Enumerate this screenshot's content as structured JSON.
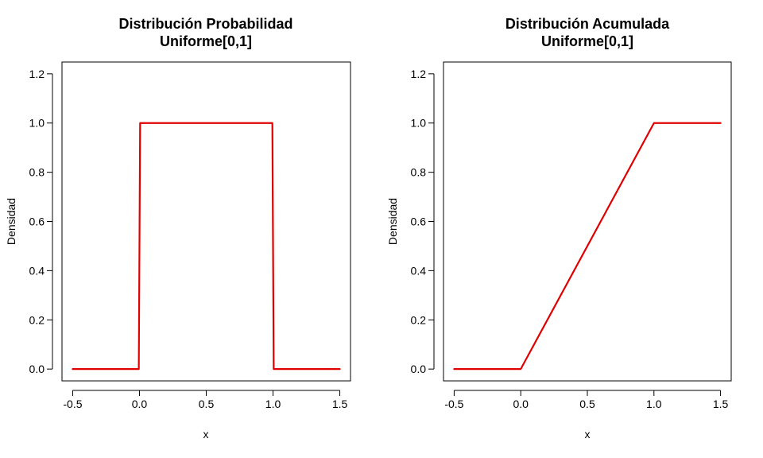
{
  "chart_data": [
    {
      "type": "line",
      "title_lines": [
        "Distribución Probabilidad",
        "Uniforme[0,1]"
      ],
      "xlabel": "x",
      "ylabel": "Densidad",
      "xlim": [
        -0.5,
        1.5
      ],
      "ylim": [
        0,
        1.2
      ],
      "xticks": [
        -0.5,
        0.0,
        0.5,
        1.0,
        1.5
      ],
      "xtick_labels": [
        "-0.5",
        "0.0",
        "0.5",
        "1.0",
        "1.5"
      ],
      "yticks": [
        0.0,
        0.2,
        0.4,
        0.6,
        0.8,
        1.0,
        1.2
      ],
      "ytick_labels": [
        "0.0",
        "0.2",
        "0.4",
        "0.6",
        "0.8",
        "1.0",
        "1.2"
      ],
      "grid": false,
      "line_color": "#e00000",
      "series": [
        {
          "x": [
            -0.5,
            -0.005,
            0.005,
            0.995,
            1.005,
            1.5
          ],
          "y": [
            0,
            0,
            1,
            1,
            0,
            0
          ]
        }
      ]
    },
    {
      "type": "line",
      "title_lines": [
        "Distribución Acumulada",
        "Uniforme[0,1]"
      ],
      "xlabel": "x",
      "ylabel": "Densidad",
      "xlim": [
        -0.5,
        1.5
      ],
      "ylim": [
        0,
        1.2
      ],
      "xticks": [
        -0.5,
        0.0,
        0.5,
        1.0,
        1.5
      ],
      "xtick_labels": [
        "-0.5",
        "0.0",
        "0.5",
        "1.0",
        "1.5"
      ],
      "yticks": [
        0.0,
        0.2,
        0.4,
        0.6,
        0.8,
        1.0,
        1.2
      ],
      "ytick_labels": [
        "0.0",
        "0.2",
        "0.4",
        "0.6",
        "0.8",
        "1.0",
        "1.2"
      ],
      "grid": false,
      "line_color": "#e00000",
      "series": [
        {
          "x": [
            -0.5,
            0.0,
            1.0,
            1.5
          ],
          "y": [
            0,
            0,
            1,
            1
          ]
        }
      ]
    }
  ]
}
